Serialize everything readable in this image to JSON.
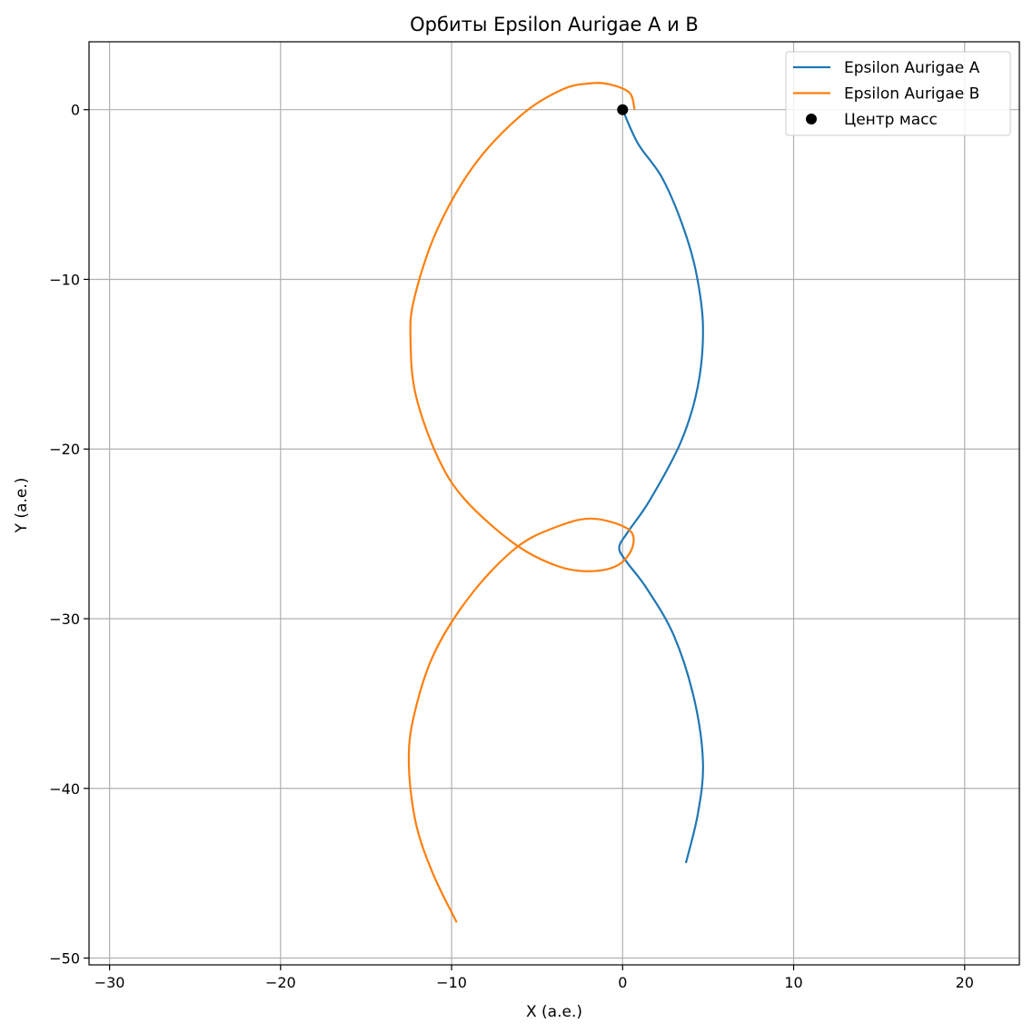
{
  "chart_data": {
    "type": "line",
    "title": "Орбиты Epsilon Aurigae A и B",
    "xlabel": "X (а.е.)",
    "ylabel": "Y (а.е.)",
    "xlim": [
      -31.2,
      23.2
    ],
    "ylim": [
      -50.4,
      4.0
    ],
    "xticks": [
      -30,
      -20,
      -10,
      0,
      10,
      20
    ],
    "yticks": [
      0,
      -10,
      -20,
      -30,
      -40,
      -50
    ],
    "xtick_labels": [
      "−30",
      "−20",
      "−10",
      "0",
      "10",
      "20"
    ],
    "ytick_labels": [
      "0",
      "−10",
      "−20",
      "−30",
      "−40",
      "−50"
    ],
    "grid": true,
    "legend_position": "top-right",
    "series": [
      {
        "name": "Epsilon Aurigae A",
        "color": "#1f77b4",
        "points": [
          [
            0.0,
            0.0
          ],
          [
            0.9,
            -2.0
          ],
          [
            2.3,
            -4.0
          ],
          [
            3.5,
            -6.8
          ],
          [
            4.3,
            -9.6
          ],
          [
            4.7,
            -12.8
          ],
          [
            4.4,
            -16.3
          ],
          [
            3.4,
            -19.6
          ],
          [
            1.6,
            -23.0
          ],
          [
            0.3,
            -24.9
          ],
          [
            -0.2,
            -25.8
          ],
          [
            0.2,
            -26.6
          ],
          [
            1.4,
            -28.2
          ],
          [
            3.0,
            -31.0
          ],
          [
            4.2,
            -34.8
          ],
          [
            4.7,
            -38.5
          ],
          [
            4.4,
            -41.5
          ],
          [
            3.7,
            -44.4
          ]
        ]
      },
      {
        "name": "Epsilon Aurigae B",
        "color": "#ff7f0e",
        "points": [
          [
            0.7,
            0.0
          ],
          [
            0.4,
            1.0
          ],
          [
            -0.8,
            1.5
          ],
          [
            -1.9,
            1.55
          ],
          [
            -3.5,
            1.2
          ],
          [
            -5.9,
            -0.3
          ],
          [
            -8.7,
            -3.3
          ],
          [
            -10.9,
            -7.2
          ],
          [
            -12.2,
            -11.2
          ],
          [
            -12.4,
            -13.6
          ],
          [
            -12.1,
            -16.8
          ],
          [
            -10.8,
            -20.5
          ],
          [
            -9.2,
            -23.0
          ],
          [
            -6.3,
            -25.6
          ],
          [
            -3.8,
            -26.9
          ],
          [
            -1.8,
            -27.2
          ],
          [
            -0.2,
            -26.8
          ],
          [
            0.6,
            -25.7
          ],
          [
            0.3,
            -24.7
          ],
          [
            -1.8,
            -24.1
          ],
          [
            -3.9,
            -24.6
          ],
          [
            -6.2,
            -25.8
          ],
          [
            -8.8,
            -28.5
          ],
          [
            -11.0,
            -32.0
          ],
          [
            -12.2,
            -35.7
          ],
          [
            -12.5,
            -38.5
          ],
          [
            -12.1,
            -42.0
          ],
          [
            -11.1,
            -45.0
          ],
          [
            -9.7,
            -47.9
          ]
        ]
      },
      {
        "name": "Центр масс",
        "color": "#000000",
        "marker": "circle",
        "points": [
          [
            0.0,
            0.0
          ]
        ]
      }
    ]
  }
}
